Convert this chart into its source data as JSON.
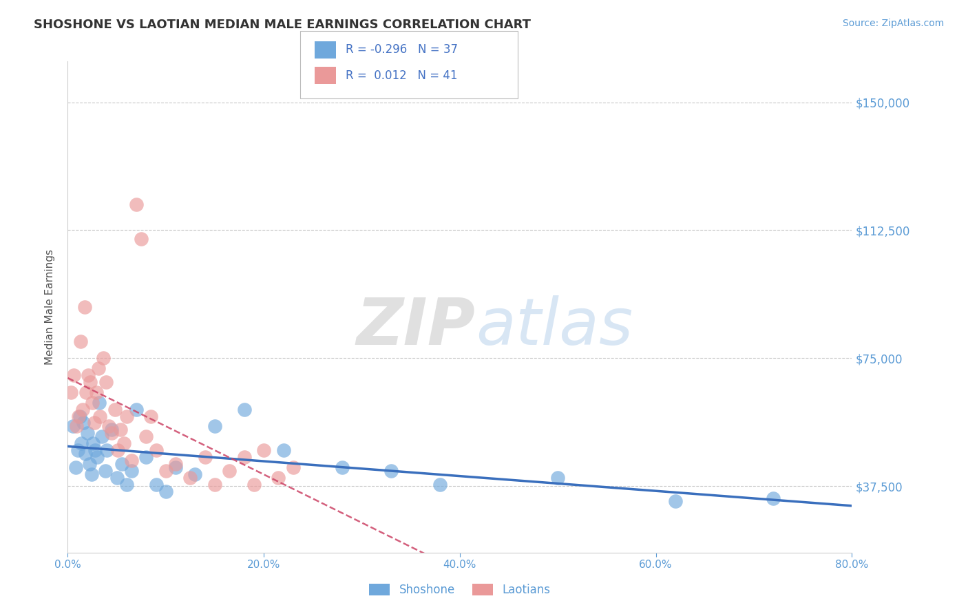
{
  "title": "SHOSHONE VS LAOTIAN MEDIAN MALE EARNINGS CORRELATION CHART",
  "source": "Source: ZipAtlas.com",
  "ylabel": "Median Male Earnings",
  "xlim": [
    0.0,
    80.0
  ],
  "ylim": [
    18000,
    162000
  ],
  "yticks": [
    37500,
    75000,
    112500,
    150000
  ],
  "ytick_labels": [
    "$37,500",
    "$75,000",
    "$112,500",
    "$150,000"
  ],
  "xticks": [
    0.0,
    20.0,
    40.0,
    60.0,
    80.0
  ],
  "xtick_labels": [
    "0.0%",
    "20.0%",
    "40.0%",
    "60.0%",
    "80.0%"
  ],
  "legend_r_shoshone": "-0.296",
  "legend_n_shoshone": "37",
  "legend_r_laotian": "0.012",
  "legend_n_laotian": "41",
  "shoshone_color": "#6fa8dc",
  "laotian_color": "#ea9999",
  "shoshone_line_color": "#3a6fbd",
  "laotian_line_color": "#cc4466",
  "grid_color": "#c8c8c8",
  "axis_color": "#cccccc",
  "tick_color": "#5b9bd5",
  "title_color": "#333333",
  "ylabel_color": "#555555",
  "watermark_zip": "ZIP",
  "watermark_atlas": "atlas",
  "background_color": "#ffffff",
  "shoshone_x": [
    0.5,
    0.8,
    1.0,
    1.2,
    1.4,
    1.6,
    1.8,
    2.0,
    2.2,
    2.4,
    2.6,
    2.8,
    3.0,
    3.2,
    3.5,
    3.8,
    4.0,
    4.5,
    5.0,
    5.5,
    6.0,
    6.5,
    7.0,
    8.0,
    9.0,
    10.0,
    11.0,
    13.0,
    15.0,
    18.0,
    22.0,
    28.0,
    33.0,
    38.0,
    50.0,
    62.0,
    72.0
  ],
  "shoshone_y": [
    55000,
    43000,
    48000,
    58000,
    50000,
    56000,
    47000,
    53000,
    44000,
    41000,
    50000,
    48000,
    46000,
    62000,
    52000,
    42000,
    48000,
    54000,
    40000,
    44000,
    38000,
    42000,
    60000,
    46000,
    38000,
    36000,
    43000,
    41000,
    55000,
    60000,
    48000,
    43000,
    42000,
    38000,
    40000,
    33000,
    34000
  ],
  "laotian_x": [
    0.3,
    0.6,
    0.9,
    1.1,
    1.3,
    1.5,
    1.7,
    1.9,
    2.1,
    2.3,
    2.5,
    2.7,
    2.9,
    3.1,
    3.3,
    3.6,
    3.9,
    4.2,
    4.5,
    4.8,
    5.1,
    5.4,
    5.7,
    6.0,
    6.5,
    7.0,
    7.5,
    8.0,
    8.5,
    9.0,
    10.0,
    11.0,
    12.5,
    14.0,
    15.0,
    16.5,
    18.0,
    19.0,
    20.0,
    21.5,
    23.0
  ],
  "laotian_y": [
    65000,
    70000,
    55000,
    58000,
    80000,
    60000,
    90000,
    65000,
    70000,
    68000,
    62000,
    56000,
    65000,
    72000,
    58000,
    75000,
    68000,
    55000,
    53000,
    60000,
    48000,
    54000,
    50000,
    58000,
    45000,
    120000,
    110000,
    52000,
    58000,
    48000,
    42000,
    44000,
    40000,
    46000,
    38000,
    42000,
    46000,
    38000,
    48000,
    40000,
    43000
  ]
}
